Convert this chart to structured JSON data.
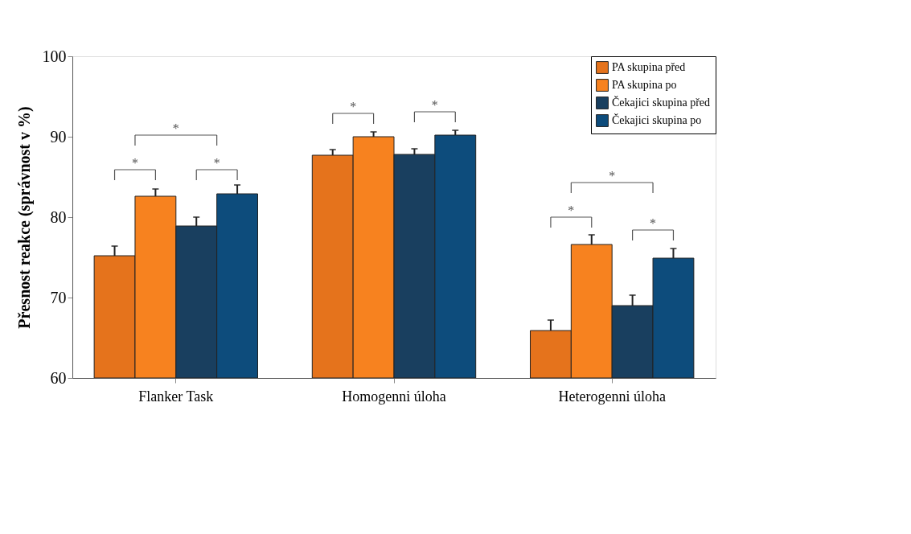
{
  "chart_data": {
    "type": "bar",
    "ylabel": "Přesnost reakce (správnost v %)",
    "categories": [
      "Flanker Task",
      "Homogenni úloha",
      "Heterogenni úloha"
    ],
    "series": [
      {
        "name": "PA skupina před",
        "color": "#e5731c",
        "values": [
          75.2,
          87.7,
          65.9
        ],
        "errors": [
          1.2,
          0.7,
          1.3
        ]
      },
      {
        "name": "PA skupina po",
        "color": "#f7821f",
        "values": [
          82.6,
          90.0,
          76.6
        ],
        "errors": [
          0.9,
          0.6,
          1.2
        ]
      },
      {
        "name": "Čekajici skupina před",
        "color": "#193f5f",
        "values": [
          78.9,
          87.8,
          69.0
        ],
        "errors": [
          1.1,
          0.7,
          1.3
        ]
      },
      {
        "name": "Čekajici skupina po",
        "color": "#0d4c7c",
        "values": [
          82.9,
          90.2,
          74.9
        ],
        "errors": [
          1.1,
          0.6,
          1.2
        ]
      }
    ],
    "ylim": [
      60,
      100
    ],
    "yticks": [
      60,
      70,
      80,
      90,
      100
    ],
    "grid": false,
    "legend": "top right",
    "annotations": [
      "*",
      "*",
      "*",
      "*",
      "*",
      "*",
      "*",
      "*"
    ]
  }
}
